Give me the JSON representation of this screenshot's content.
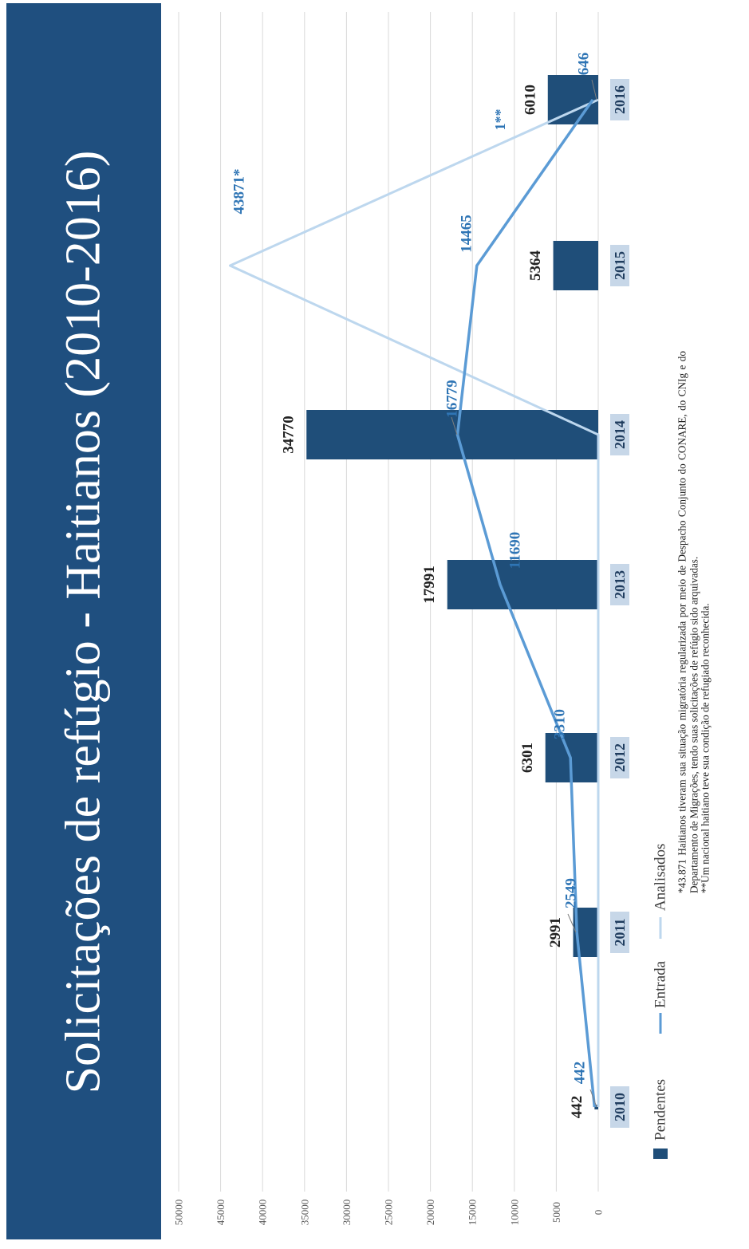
{
  "title": "Solicitações de refúgio - Haitianos (2010-2016)",
  "colors": {
    "pendentes": "#1f4e79",
    "entrada": "#5b9bd5",
    "analisados": "#bdd7ee",
    "title_bg": "#1f4f7f",
    "category_bg": "#c7d7e8"
  },
  "chart_data": {
    "type": "bar",
    "orientation": "rotated",
    "title": "Solicitações de refúgio - Haitianos (2010-2016)",
    "categories": [
      "2010",
      "2011",
      "2012",
      "2013",
      "2014",
      "2015",
      "2016"
    ],
    "ylim": [
      0,
      50000
    ],
    "yticks": [
      "0",
      "5000",
      "10000",
      "15000",
      "20000",
      "25000",
      "30000",
      "35000",
      "40000",
      "45000",
      "50000"
    ],
    "grid": true,
    "legend_position": "bottom",
    "series": [
      {
        "name": "Pendentes",
        "type": "bar",
        "values": [
          442,
          2991,
          6301,
          17991,
          34770,
          5364,
          6010
        ],
        "labels": [
          "442",
          "2991",
          "6301",
          "17991",
          "34770",
          "5364",
          "6010"
        ]
      },
      {
        "name": "Entrada",
        "type": "line",
        "values": [
          442,
          2549,
          3310,
          11690,
          16779,
          14465,
          646
        ],
        "labels": [
          "442",
          "2549",
          "3310",
          "11690",
          "16779",
          "14465",
          "646"
        ]
      },
      {
        "name": "Analisados",
        "type": "line",
        "values": [
          0,
          0,
          0,
          0,
          0,
          43871,
          1
        ],
        "labels": [
          "",
          "",
          "",
          "",
          "",
          "43871*",
          "1**"
        ]
      }
    ]
  },
  "notes": [
    "*43.871 Haitianos tiveram sua situação migratória regularizada por meio de Despacho Conjunto do CONARE, do CNIg e do Departamento de Migrações, tendo suas solicitações de refúgio sido arquivadas.",
    "**Um nacional haitiano teve sua condição de refugiado reconhecida."
  ]
}
